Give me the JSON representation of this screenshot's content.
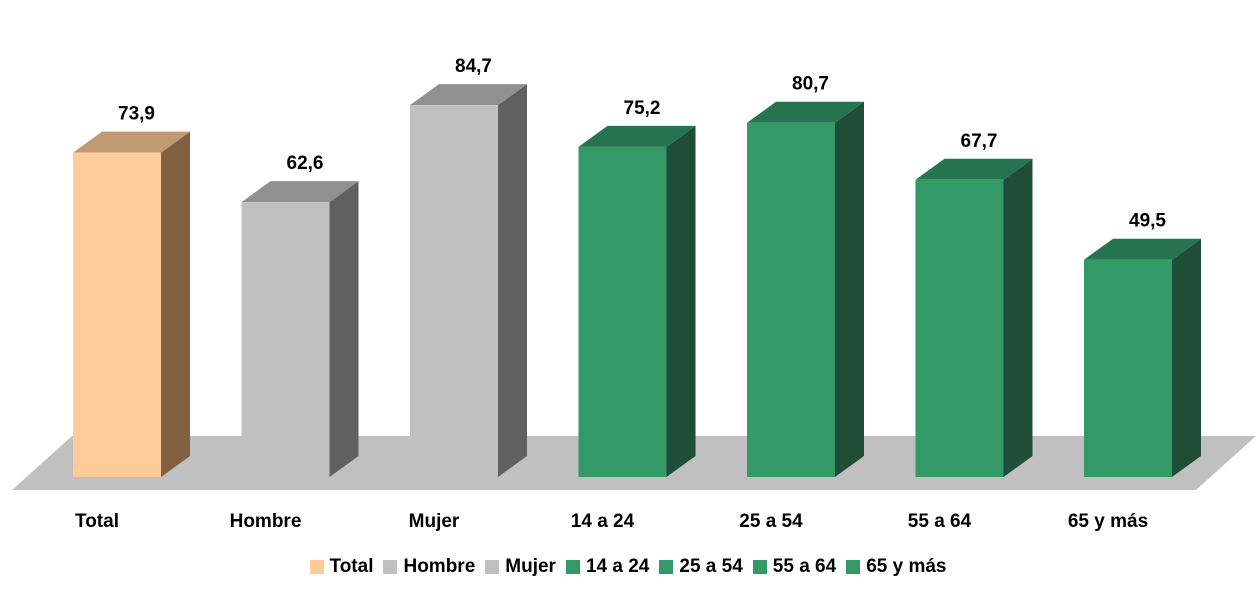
{
  "chart_data": {
    "type": "bar",
    "style": "3d-column",
    "categories": [
      "Total",
      "Hombre",
      "Mujer",
      "14 a 24",
      "25 a 54",
      "55 a 64",
      "65 y más"
    ],
    "values": [
      73.9,
      62.6,
      84.7,
      75.2,
      80.7,
      67.7,
      49.5
    ],
    "value_labels": [
      "73,9",
      "62,6",
      "84,7",
      "75,2",
      "80,7",
      "67,7",
      "49,5"
    ],
    "bar_colors": {
      "front": [
        "#ffcc99",
        "#c0c0c0",
        "#c0c0c0",
        "#339966",
        "#339966",
        "#339966",
        "#339966"
      ],
      "side": [
        "#806040",
        "#606060",
        "#606060",
        "#1f4d36",
        "#1f4d36",
        "#1f4d36",
        "#1f4d36"
      ],
      "top": [
        "#c09a73",
        "#909090",
        "#909090",
        "#267350",
        "#267350",
        "#267350",
        "#267350"
      ]
    },
    "floor_color": "#c0c0c0",
    "legend": {
      "position": "bottom",
      "items": [
        {
          "label": "Total",
          "color": "#ffcc99"
        },
        {
          "label": "Hombre",
          "color": "#c0c0c0"
        },
        {
          "label": "Mujer",
          "color": "#c0c0c0"
        },
        {
          "label": "14 a 24",
          "color": "#339966"
        },
        {
          "label": "25 a 54",
          "color": "#339966"
        },
        {
          "label": "55 a 64",
          "color": "#339966"
        },
        {
          "label": "65 y más",
          "color": "#339966"
        }
      ]
    },
    "grid": false,
    "title": "",
    "xlabel": "",
    "ylabel": ""
  }
}
